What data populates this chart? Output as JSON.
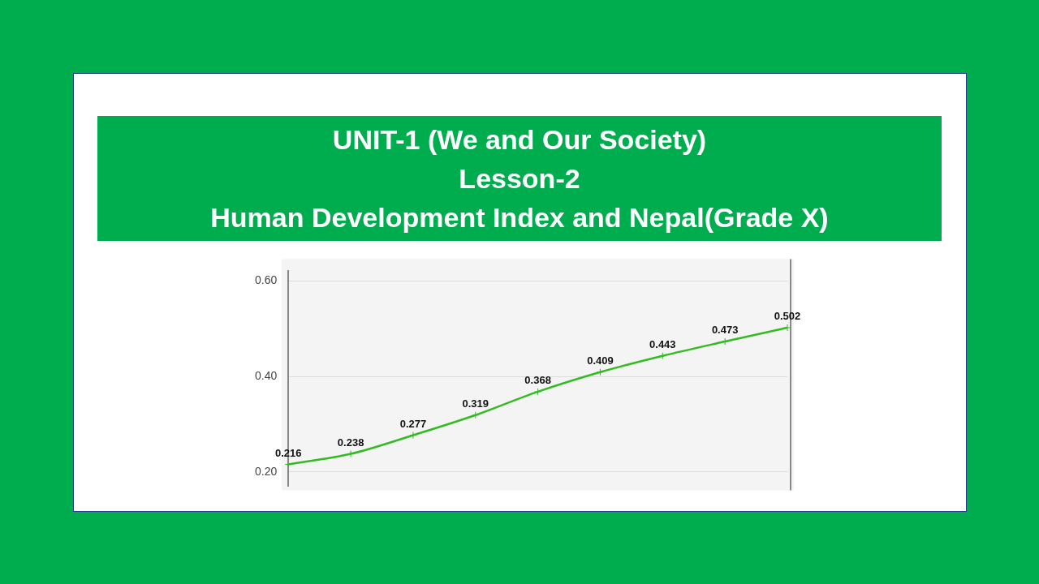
{
  "chart_data": {
    "type": "line",
    "title": "UNIT-1 (We and Our Society)\nLesson-2\nHuman Development Index and Nepal(Grade X)",
    "categories": [
      null,
      null,
      null,
      null,
      null,
      null,
      null,
      null,
      null
    ],
    "series": [
      {
        "color": "#33bb22",
        "values": [
          0.216,
          0.238,
          0.277,
          0.319,
          0.368,
          0.409,
          0.443,
          0.473,
          0.502
        ]
      }
    ],
    "ylim": [
      0.17,
      0.62
    ],
    "yticks": [
      {
        "value": 0.2,
        "label": "0.20"
      },
      {
        "value": 0.4,
        "label": "0.40"
      },
      {
        "value": 0.6,
        "label": "0.60"
      }
    ],
    "grid": "y",
    "legend": false,
    "marker": "cross",
    "line_style": "solid",
    "data_labels": true
  }
}
